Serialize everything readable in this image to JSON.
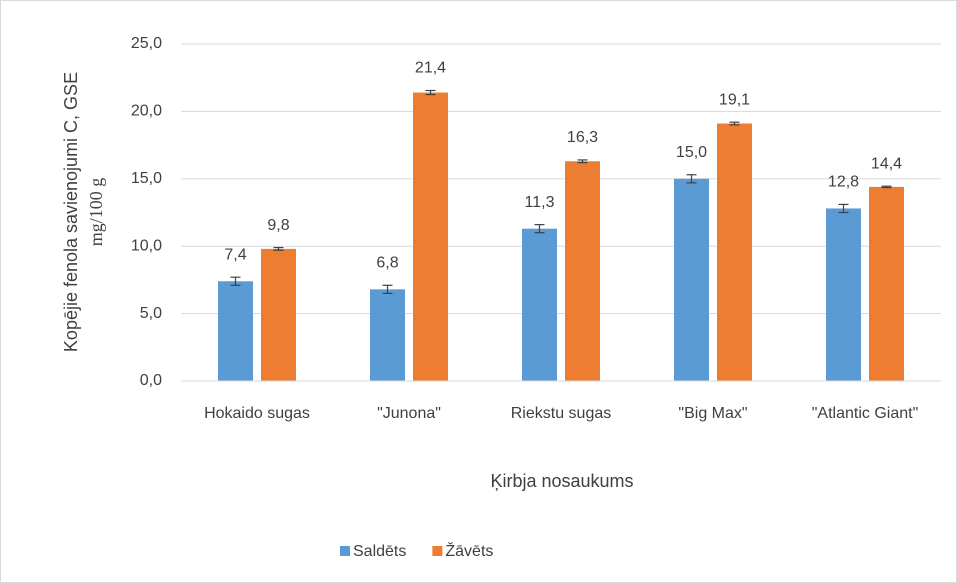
{
  "chart_data": {
    "type": "bar",
    "ylabel": [
      "Kopējie fenola savienojumi C, GSE",
      "mg/100 g"
    ],
    "xlabel": "Ķirbja nosaukums",
    "categories": [
      "Hokaido sugas",
      "\"Junona\"",
      "Riekstu sugas",
      "\"Big Max\"",
      "\"Atlantic Giant\""
    ],
    "series": [
      {
        "name": "Saldēts",
        "color": "#5b9bd5",
        "values": [
          7.4,
          6.8,
          11.3,
          15.0,
          12.8
        ],
        "value_labels": [
          "7,4",
          "6,8",
          "11,3",
          "15,0",
          "12,8"
        ],
        "errors": [
          0.3,
          0.3,
          0.3,
          0.3,
          0.3
        ]
      },
      {
        "name": "Žāvēts",
        "color": "#ed7d31",
        "values": [
          9.8,
          21.4,
          16.3,
          19.1,
          14.4
        ],
        "value_labels": [
          "9,8",
          "21,4",
          "16,3",
          "19,1",
          "14,4"
        ],
        "errors": [
          0.1,
          0.15,
          0.1,
          0.1,
          0.05
        ]
      }
    ],
    "ylim": [
      0,
      25
    ],
    "yticks": [
      {
        "value": 0,
        "label": "0,0"
      },
      {
        "value": 5,
        "label": "5,0"
      },
      {
        "value": 10,
        "label": "10,0"
      },
      {
        "value": 15,
        "label": "15,0"
      },
      {
        "value": 20,
        "label": "20,0"
      },
      {
        "value": 25,
        "label": "25,0"
      }
    ],
    "grid": true,
    "legend": "bottom"
  }
}
